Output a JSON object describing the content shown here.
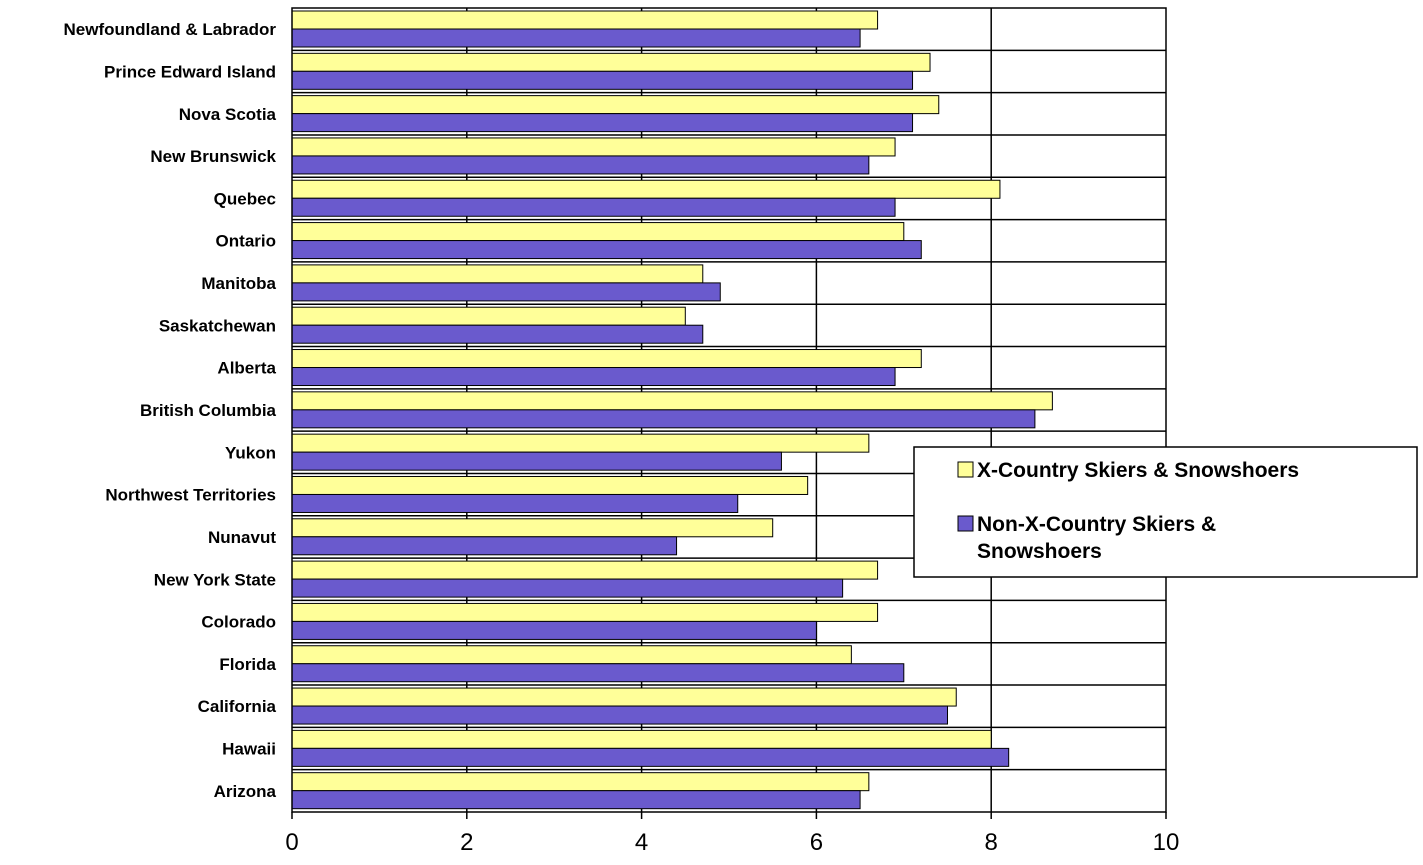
{
  "chart_data": {
    "type": "bar",
    "orientation": "horizontal",
    "categories": [
      "Newfoundland & Labrador",
      "Prince Edward Island",
      "Nova Scotia",
      "New Brunswick",
      "Quebec",
      "Ontario",
      "Manitoba",
      "Saskatchewan",
      "Alberta",
      "British Columbia",
      "Yukon",
      "Northwest Territories",
      "Nunavut",
      "New York State",
      "Colorado",
      "Florida",
      "California",
      "Hawaii",
      "Arizona"
    ],
    "series": [
      {
        "name": "X-Country Skiers & Snowshoers",
        "color": "#FFFF99",
        "values": [
          6.7,
          7.3,
          7.4,
          6.9,
          8.1,
          7.0,
          4.7,
          4.5,
          7.2,
          8.7,
          6.6,
          5.9,
          5.5,
          6.7,
          6.7,
          6.4,
          7.6,
          8.0,
          6.6
        ]
      },
      {
        "name": "Non-X-Country Skiers & Snowshoers",
        "color": "#6A5ACD",
        "values": [
          6.5,
          7.1,
          7.1,
          6.6,
          6.9,
          7.2,
          4.9,
          4.7,
          6.9,
          8.5,
          5.6,
          5.1,
          4.4,
          6.3,
          6.0,
          7.0,
          7.5,
          8.2,
          6.5
        ]
      }
    ],
    "xlim": [
      0,
      10
    ],
    "xticks": [
      "0",
      "2",
      "4",
      "6",
      "8",
      "10"
    ],
    "grid": "vertical",
    "legend": {
      "placement": "right",
      "entries": [
        [
          "X-Country Skiers & Snowshoers"
        ],
        [
          "Non-X-Country Skiers &",
          "Snowshoers"
        ]
      ]
    }
  }
}
